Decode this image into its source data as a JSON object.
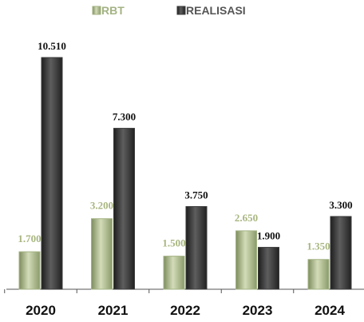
{
  "chart_data": {
    "type": "bar",
    "categories": [
      "2020",
      "2021",
      "2022",
      "2023",
      "2024"
    ],
    "series": [
      {
        "name": "RBT",
        "color": "#a3b383",
        "values": [
          1700,
          3200,
          1500,
          2650,
          1350
        ],
        "value_labels": [
          "1.700",
          "3.200",
          "1.500",
          "2.650",
          "1.350"
        ]
      },
      {
        "name": "REALISASI",
        "color": "#3a3a3a",
        "values": [
          10510,
          7300,
          3750,
          1900,
          3300
        ],
        "value_labels": [
          "10.510",
          "7.300",
          "3.750",
          "1.900",
          "3.300"
        ]
      }
    ]
  }
}
